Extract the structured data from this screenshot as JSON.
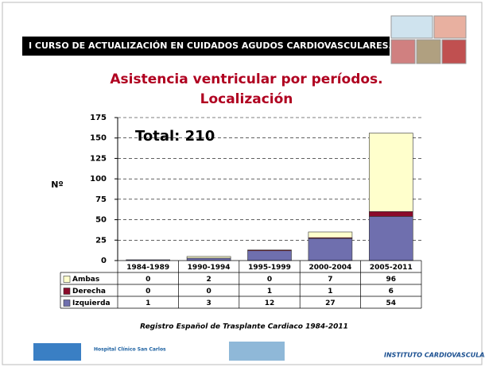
{
  "header": "I CURSO DE ACTUALIZACIÓN EN CUIDADOS AGUDOS CARDIOVASCULARES.",
  "chart_data": {
    "type": "bar",
    "stacked": true,
    "title": [
      "Asistencia ventricular por períodos.",
      "Localización"
    ],
    "ylabel": "Nº",
    "annotation": "Total: 210",
    "categories": [
      "1984-1989",
      "1990-1994",
      "1995-1999",
      "2000-2004",
      "2005-2011"
    ],
    "series": [
      {
        "name": "Ambas",
        "color": "#ffffcc",
        "values": [
          0,
          2,
          0,
          7,
          96
        ]
      },
      {
        "name": "Derecha",
        "color": "#8b0a2a",
        "values": [
          0,
          0,
          1,
          1,
          6
        ]
      },
      {
        "name": "Izquierda",
        "color": "#6f6fae",
        "values": [
          1,
          3,
          12,
          27,
          54
        ]
      }
    ],
    "ylim": [
      0,
      175
    ],
    "yticks": [
      0,
      25,
      50,
      75,
      100,
      125,
      150,
      175
    ],
    "grid": true
  },
  "source": "Registro Español de Trasplante Cardiaco 1984-2011",
  "logos": [
    "Hospital Clínico San Carlos",
    "INSTITUTO CARDIOVASCULAR"
  ]
}
